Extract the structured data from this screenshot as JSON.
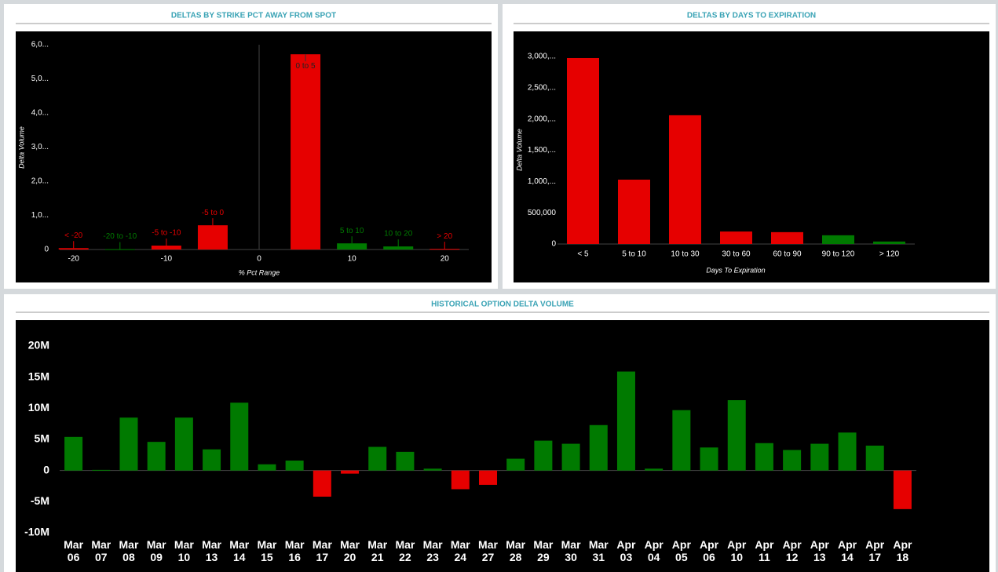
{
  "chart_data": [
    {
      "type": "strike",
      "title": "DELTAS BY STRIKE PCT AWAY FROM SPOT",
      "x_label": "% Pct Range",
      "y_label": "Delta Volume",
      "x": [
        -20,
        -15,
        -10,
        -5,
        5,
        10,
        15,
        20
      ],
      "labels": [
        "< -20",
        "-20 to -10",
        "-5 to -10",
        "-5 to 0",
        "0 to 5",
        "5 to 10",
        "10 to 20",
        "> 20"
      ],
      "values": [
        40000,
        10000,
        115000,
        710000,
        5720000,
        180000,
        90000,
        20000
      ],
      "colors": [
        "#e60000",
        "#007a00",
        "#e60000",
        "#e60000",
        "#e60000",
        "#007a00",
        "#007a00",
        "#e60000"
      ],
      "xlim": [
        -21.5,
        22.6
      ],
      "xticks": [
        -20,
        -10,
        0,
        10,
        20
      ],
      "ylim": [
        0,
        6000000
      ],
      "yticks": [
        0,
        {
          "value": 1000000,
          "label": "1,0..."
        },
        {
          "value": 2000000,
          "label": "2,0..."
        },
        {
          "value": 3000000,
          "label": "3,0..."
        },
        {
          "value": 4000000,
          "label": "4,0..."
        },
        {
          "value": 5000000,
          "label": "5,0..."
        },
        {
          "value": 6000000,
          "label": "6,0..."
        }
      ]
    },
    {
      "type": "bar",
      "title": "DELTAS BY DAYS TO EXPIRATION",
      "x_label": "Days To Expiration",
      "y_label": "Delta Volume",
      "categories": [
        "< 5",
        "5 to 10",
        "10 to 30",
        "30 to 60",
        "60 to 90",
        "90 to 120",
        "> 120"
      ],
      "values": [
        2975000,
        1030000,
        2060000,
        200000,
        190000,
        140000,
        40000
      ],
      "colors": [
        "#e60000",
        "#e60000",
        "#e60000",
        "#e60000",
        "#e60000",
        "#007a00",
        "#007a00"
      ],
      "ylim": [
        0,
        3000000
      ],
      "yticks": [
        0,
        {
          "value": 500000,
          "label": "500,000"
        },
        {
          "value": 1000000,
          "label": "1,000,..."
        },
        {
          "value": 1500000,
          "label": "1,500,..."
        },
        {
          "value": 2000000,
          "label": "2,000,..."
        },
        {
          "value": 2500000,
          "label": "2,500,..."
        },
        {
          "value": 3000000,
          "label": "3,000,..."
        }
      ]
    },
    {
      "type": "signed-bar",
      "title": "HISTORICAL OPTION DELTA VOLUME",
      "categories": [
        "Mar 06",
        "Mar 07",
        "Mar 08",
        "Mar 09",
        "Mar 10",
        "Mar 13",
        "Mar 14",
        "Mar 15",
        "Mar 16",
        "Mar 17",
        "Mar 20",
        "Mar 21",
        "Mar 22",
        "Mar 23",
        "Mar 24",
        "Mar 27",
        "Mar 28",
        "Mar 29",
        "Mar 30",
        "Mar 31",
        "Apr 03",
        "Apr 04",
        "Apr 05",
        "Apr 06",
        "Apr 10",
        "Apr 11",
        "Apr 12",
        "Apr 13",
        "Apr 14",
        "Apr 17",
        "Apr 18"
      ],
      "values": [
        5400000,
        100000,
        8500000,
        4600000,
        8500000,
        3400000,
        10900000,
        1000000,
        1600000,
        -4200000,
        -500000,
        3800000,
        3000000,
        300000,
        -3000000,
        -2300000,
        1900000,
        4800000,
        4300000,
        7300000,
        15900000,
        300000,
        9700000,
        3700000,
        11300000,
        4400000,
        3300000,
        4300000,
        6100000,
        4000000,
        -6200000
      ],
      "positive_color": "#007a00",
      "negative_color": "#e60000",
      "ylim": [
        -10000000,
        20000000
      ],
      "yticks": [
        {
          "value": -10000000,
          "label": "-10M"
        },
        {
          "value": -5000000,
          "label": "-5M"
        },
        0,
        {
          "value": 5000000,
          "label": "5M"
        },
        {
          "value": 10000000,
          "label": "10M"
        },
        {
          "value": 15000000,
          "label": "15M"
        },
        {
          "value": 20000000,
          "label": "20M"
        }
      ]
    }
  ]
}
